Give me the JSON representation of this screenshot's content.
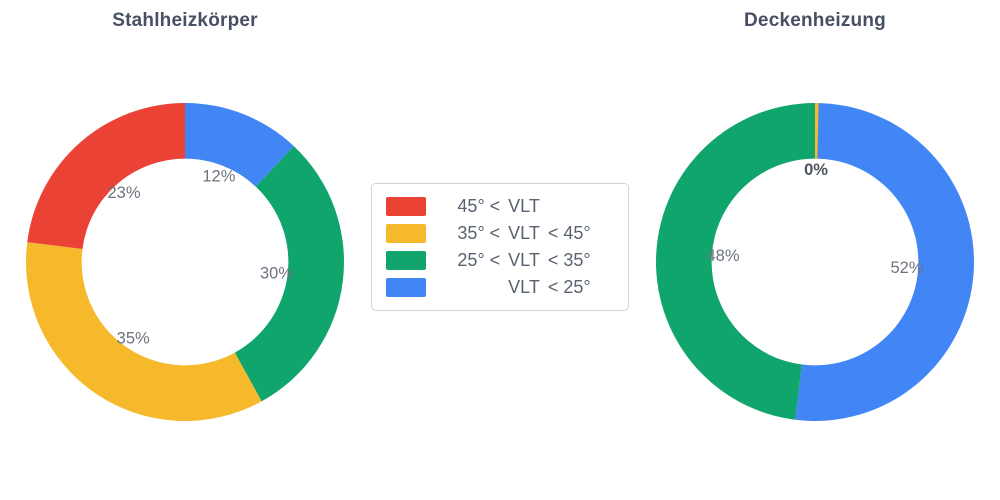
{
  "figure": {
    "background": "#ffffff",
    "palette": {
      "red": "#EA4336",
      "yellow": "#F6B92C",
      "green": "#10A56D",
      "blue": "#4286F5"
    }
  },
  "chart_data": [
    {
      "type": "pie",
      "subtype": "donut",
      "title": "Stahlheizkörper",
      "hole_ratio": 0.65,
      "start_angle": "top",
      "direction": "clockwise",
      "slices": [
        {
          "legend_label": "VLT < 25°",
          "value_pct": 12,
          "label": "12%",
          "color": "#4286F5"
        },
        {
          "legend_label": "25° < VLT < 35°",
          "value_pct": 30,
          "label": "30%",
          "color": "#10A56D"
        },
        {
          "legend_label": "35° < VLT < 45°",
          "value_pct": 35,
          "label": "35%",
          "color": "#F6B92C"
        },
        {
          "legend_label": "45° < VLT",
          "value_pct": 23,
          "label": "23%",
          "color": "#EA4336"
        }
      ]
    },
    {
      "type": "pie",
      "subtype": "donut",
      "title": "Deckenheizung",
      "hole_ratio": 0.65,
      "start_angle": "top",
      "direction": "clockwise",
      "slices": [
        {
          "legend_label": "VLT < 25°",
          "value_pct": 52,
          "label": "52%",
          "color": "#4286F5"
        },
        {
          "legend_label": "25° < VLT < 35°",
          "value_pct": 48,
          "label": "48%",
          "color": "#10A56D"
        },
        {
          "legend_label": "35° < VLT < 45°",
          "value_pct": 0,
          "label": "0%",
          "color": "#F6B92C",
          "label_bold": true
        }
      ]
    }
  ],
  "legend": {
    "items": [
      {
        "label": "45° < VLT",
        "parts": {
          "left": "45° <",
          "mid": "VLT",
          "right": ""
        },
        "color": "#EA4336"
      },
      {
        "label": "35° < VLT < 45°",
        "parts": {
          "left": "35° <",
          "mid": "VLT",
          "right": "< 45°"
        },
        "color": "#F6B92C"
      },
      {
        "label": "25° < VLT < 35°",
        "parts": {
          "left": "25° <",
          "mid": "VLT",
          "right": "< 35°"
        },
        "color": "#10A56D"
      },
      {
        "label": "VLT < 25°",
        "parts": {
          "left": "",
          "mid": "VLT",
          "right": "< 25°"
        },
        "color": "#4286F5"
      }
    ]
  }
}
